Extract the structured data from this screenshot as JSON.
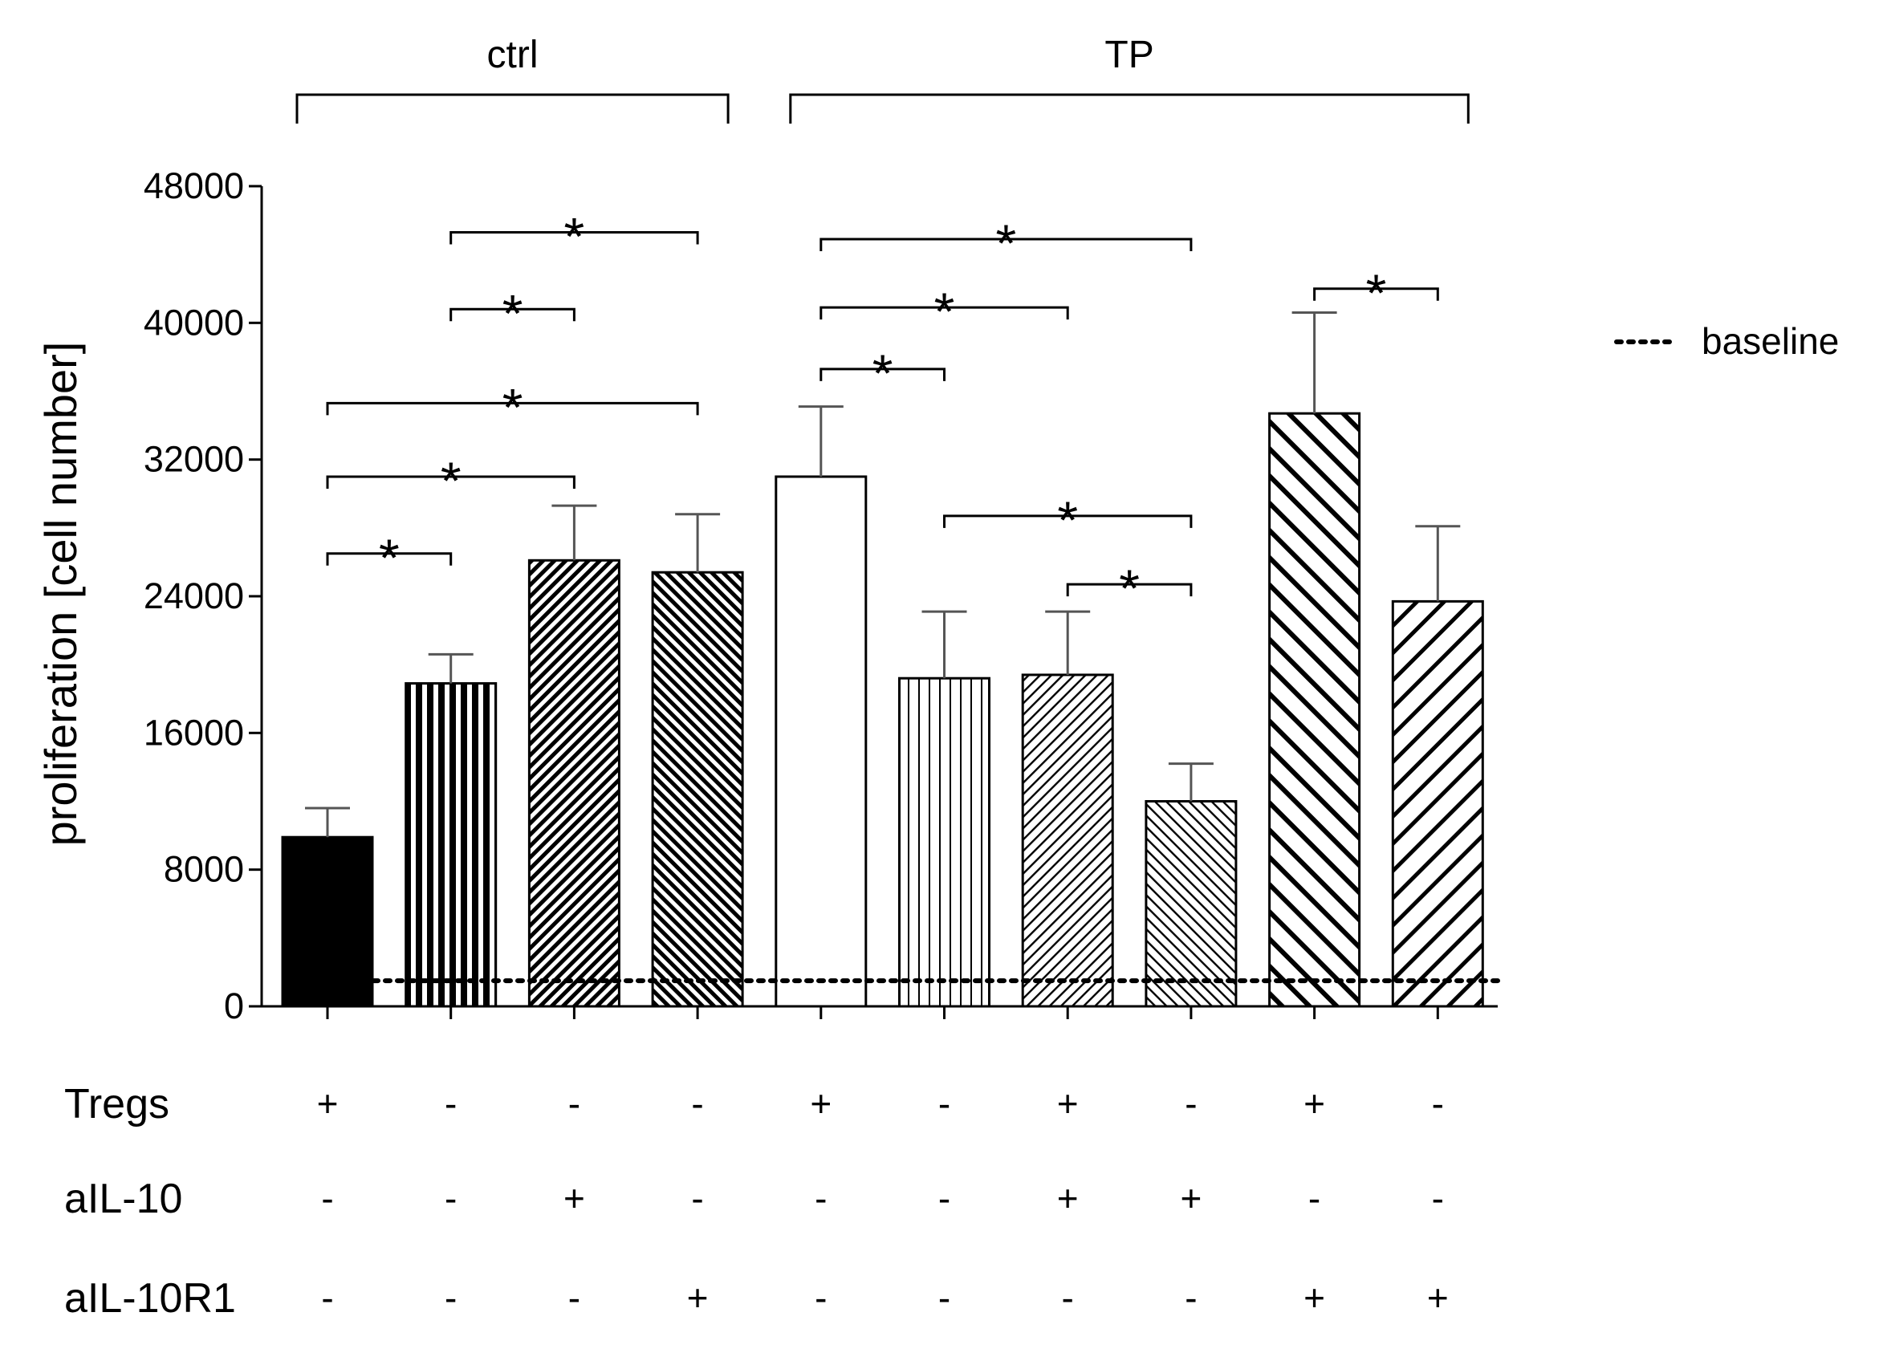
{
  "chart_data": {
    "type": "bar",
    "ylabel": "proliferation [cell number]",
    "ylim": [
      0,
      48000
    ],
    "yticks": [
      0,
      8000,
      16000,
      24000,
      32000,
      40000,
      48000
    ],
    "ytick_labels": [
      "0",
      "8000",
      "16000",
      "24000",
      "32000",
      "40000",
      "48000"
    ],
    "baseline": 1500,
    "legend": {
      "label": "baseline",
      "position": "top-right"
    },
    "groups": [
      {
        "label": "ctrl",
        "first_bar": 0,
        "last_bar": 3
      },
      {
        "label": "TP",
        "first_bar": 4,
        "last_bar": 9
      }
    ],
    "bars": [
      {
        "value": 9900,
        "error": 1700,
        "pattern": "solid-black"
      },
      {
        "value": 18900,
        "error": 1700,
        "pattern": "vertical-dense"
      },
      {
        "value": 26100,
        "error": 3200,
        "pattern": "diag-right-dense"
      },
      {
        "value": 25400,
        "error": 3400,
        "pattern": "diag-left-dense"
      },
      {
        "value": 31000,
        "error": 4100,
        "pattern": "white"
      },
      {
        "value": 19200,
        "error": 3900,
        "pattern": "vertical-light"
      },
      {
        "value": 19400,
        "error": 3700,
        "pattern": "diag-right-light"
      },
      {
        "value": 12000,
        "error": 2200,
        "pattern": "diag-left-light"
      },
      {
        "value": 34700,
        "error": 5900,
        "pattern": "diag-left-wide"
      },
      {
        "value": 23700,
        "error": 4400,
        "pattern": "diag-right-wide"
      }
    ],
    "conditions": [
      {
        "label": "Tregs",
        "signs": [
          "+",
          "-",
          "-",
          "-",
          "+",
          "-",
          "+",
          "-",
          "+",
          "-"
        ]
      },
      {
        "label": "aIL-10",
        "signs": [
          "-",
          "-",
          "+",
          "-",
          "-",
          "-",
          "+",
          "+",
          "-",
          "-"
        ]
      },
      {
        "label": "aIL-10R1",
        "signs": [
          "-",
          "-",
          "-",
          "+",
          "-",
          "-",
          "-",
          "-",
          "+",
          "+"
        ]
      }
    ],
    "significance": [
      {
        "from": 0,
        "to": 1,
        "level": 26500,
        "label": "*"
      },
      {
        "from": 0,
        "to": 2,
        "level": 31000,
        "label": "*"
      },
      {
        "from": 0,
        "to": 3,
        "level": 35300,
        "label": "*"
      },
      {
        "from": 1,
        "to": 2,
        "level": 40800,
        "label": "*"
      },
      {
        "from": 1,
        "to": 3,
        "level": 45300,
        "label": "*"
      },
      {
        "from": 4,
        "to": 5,
        "level": 37300,
        "label": "*"
      },
      {
        "from": 4,
        "to": 6,
        "level": 40900,
        "label": "*"
      },
      {
        "from": 4,
        "to": 7,
        "level": 44900,
        "label": "*"
      },
      {
        "from": 5,
        "to": 7,
        "level": 28700,
        "label": "*"
      },
      {
        "from": 6,
        "to": 7,
        "level": 24700,
        "label": "*"
      },
      {
        "from": 8,
        "to": 9,
        "level": 42000,
        "label": "*"
      }
    ]
  }
}
